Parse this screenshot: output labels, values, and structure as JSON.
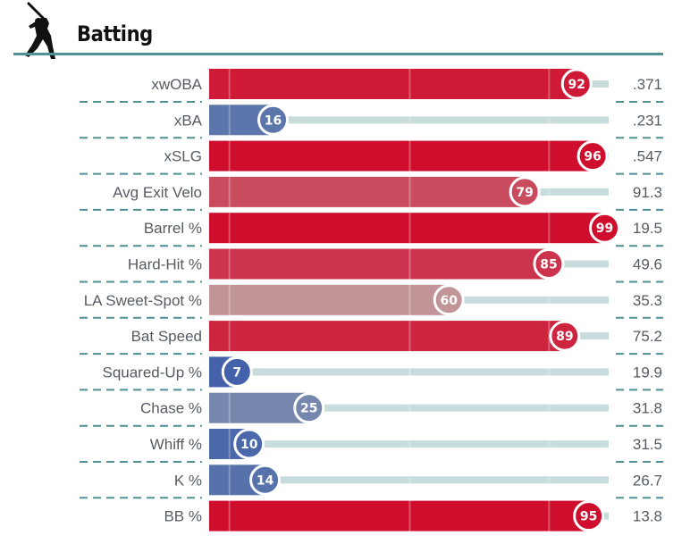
{
  "header": {
    "title": "Batting",
    "icon": "batter-silhouette-icon",
    "rule_color": "#4f9196"
  },
  "chart_data": {
    "type": "bar",
    "title": "Batting",
    "orientation": "horizontal",
    "xlim": [
      0,
      100
    ],
    "gridlines_at": [
      10,
      50,
      90
    ],
    "value_unit": "percentile",
    "colors": {
      "low": "#3d5ea8",
      "mid": "#bdbbb6",
      "high": "#cf0e2e",
      "track": "#c8dcdc",
      "divider": "#4f9196",
      "text": "#555b63"
    },
    "rows": [
      {
        "label": "xwOBA",
        "percentile": 92,
        "value": ".371"
      },
      {
        "label": "xBA",
        "percentile": 16,
        "value": ".231"
      },
      {
        "label": "xSLG",
        "percentile": 96,
        "value": ".547"
      },
      {
        "label": "Avg Exit Velo",
        "percentile": 79,
        "value": "91.3"
      },
      {
        "label": "Barrel %",
        "percentile": 99,
        "value": "19.5"
      },
      {
        "label": "Hard-Hit %",
        "percentile": 85,
        "value": "49.6"
      },
      {
        "label": "LA Sweet-Spot %",
        "percentile": 60,
        "value": "35.3"
      },
      {
        "label": "Bat Speed",
        "percentile": 89,
        "value": "75.2"
      },
      {
        "label": "Squared-Up %",
        "percentile": 7,
        "value": "19.9"
      },
      {
        "label": "Chase %",
        "percentile": 25,
        "value": "31.8"
      },
      {
        "label": "Whiff %",
        "percentile": 10,
        "value": "31.5"
      },
      {
        "label": "K %",
        "percentile": 14,
        "value": "26.7"
      },
      {
        "label": "BB %",
        "percentile": 95,
        "value": "13.8"
      }
    ]
  }
}
